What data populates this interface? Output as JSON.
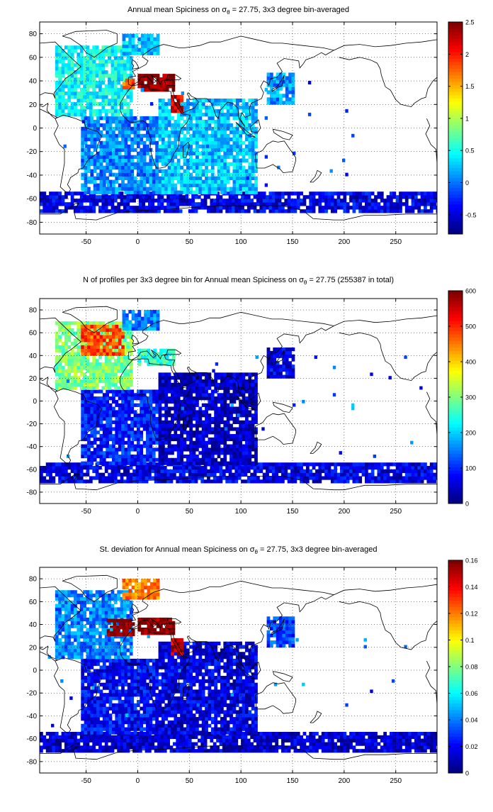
{
  "chart_data": [
    {
      "type": "heatmap",
      "title": "Annual mean Spiciness on σθ = 27.75, 3x3 degree bin-averaged",
      "title_parts": [
        "Annual mean Spiciness on σ",
        "θ",
        " = 27.75, 3x3 degree bin-averaged"
      ],
      "xlim": [
        -95,
        290
      ],
      "ylim": [
        -90,
        90
      ],
      "xticks": [
        -50,
        0,
        50,
        100,
        150,
        200,
        250
      ],
      "xtick_labels": [
        "-50",
        "0",
        "50",
        "100",
        "150",
        "200",
        "250"
      ],
      "yticks": [
        -80,
        -60,
        -40,
        -20,
        0,
        20,
        40,
        60,
        80
      ],
      "ytick_labels": [
        "-80",
        "-60",
        "-40",
        "-20",
        "0",
        "20",
        "40",
        "60",
        "80"
      ],
      "grid": true,
      "colorbar": {
        "range": [
          -0.8,
          2.5
        ],
        "ticks": [
          -0.5,
          0,
          0.5,
          1,
          1.5,
          2,
          2.5
        ],
        "tick_labels": [
          "-0.5",
          "0",
          "0.5",
          "1",
          "1.5",
          "2",
          "2.5"
        ],
        "colormap": "jet"
      },
      "regions": [
        {
          "name": "Southern Ocean band",
          "lon": [
            -95,
            290
          ],
          "lat": [
            -72,
            -56
          ],
          "value": -0.45
        },
        {
          "name": "South Atlantic",
          "lon": [
            -55,
            20
          ],
          "lat": [
            -56,
            10
          ],
          "value": 0.05
        },
        {
          "name": "Indian Ocean",
          "lon": [
            20,
            115
          ],
          "lat": [
            -56,
            25
          ],
          "value": 0.25
        },
        {
          "name": "North Atlantic",
          "lon": [
            -80,
            -5
          ],
          "lat": [
            10,
            68
          ],
          "value": 0.45
        },
        {
          "name": "Nordic Seas",
          "lon": [
            -15,
            20
          ],
          "lat": [
            62,
            80
          ],
          "value": 0.25
        },
        {
          "name": "Mediterranean outflow",
          "lon": [
            -15,
            -5
          ],
          "lat": [
            33,
            42
          ],
          "value": 1.8
        },
        {
          "name": "Mediterranean Sea",
          "lon": [
            0,
            36
          ],
          "lat": [
            31,
            44
          ],
          "value": 2.5
        },
        {
          "name": "Red Sea",
          "lon": [
            32,
            43
          ],
          "lat": [
            13,
            28
          ],
          "value": 2.2
        },
        {
          "name": "Western North Pacific patches",
          "lon": [
            125,
            150
          ],
          "lat": [
            20,
            45
          ],
          "value": 0.1
        }
      ]
    },
    {
      "type": "heatmap",
      "title": "N of profiles per 3x3 degree bin for Annual mean Spiciness on σθ = 27.75 (255387 in total)",
      "title_parts": [
        "N of profiles per 3x3 degree bin for Annual mean Spiciness on σ",
        "θ",
        " = 27.75 (255387 in total)"
      ],
      "xlim": [
        -95,
        290
      ],
      "ylim": [
        -90,
        90
      ],
      "xticks": [
        -50,
        0,
        50,
        100,
        150,
        200,
        250
      ],
      "xtick_labels": [
        "-50",
        "0",
        "50",
        "100",
        "150",
        "200",
        "250"
      ],
      "yticks": [
        -80,
        -60,
        -40,
        -20,
        0,
        20,
        40,
        60,
        80
      ],
      "ytick_labels": [
        "-80",
        "-60",
        "-40",
        "-20",
        "0",
        "20",
        "40",
        "60",
        "80"
      ],
      "grid": true,
      "colorbar": {
        "range": [
          0,
          600
        ],
        "ticks": [
          0,
          100,
          200,
          300,
          400,
          500,
          600
        ],
        "tick_labels": [
          "0",
          "100",
          "200",
          "300",
          "400",
          "500",
          "600"
        ],
        "colormap": "jet"
      },
      "regions": [
        {
          "name": "Southern Ocean band",
          "lon": [
            -95,
            290
          ],
          "lat": [
            -72,
            -56
          ],
          "value": 60
        },
        {
          "name": "South Atlantic",
          "lon": [
            -55,
            20
          ],
          "lat": [
            -56,
            10
          ],
          "value": 90
        },
        {
          "name": "Indian Ocean",
          "lon": [
            20,
            115
          ],
          "lat": [
            -56,
            25
          ],
          "value": 40
        },
        {
          "name": "North Atlantic",
          "lon": [
            -80,
            -5
          ],
          "lat": [
            10,
            68
          ],
          "value": 300
        },
        {
          "name": "Subpolar North Atlantic",
          "lon": [
            -55,
            -15
          ],
          "lat": [
            40,
            65
          ],
          "value": 480
        },
        {
          "name": "Nordic Seas",
          "lon": [
            -15,
            20
          ],
          "lat": [
            62,
            80
          ],
          "value": 150
        },
        {
          "name": "Mediterranean Sea",
          "lon": [
            0,
            36
          ],
          "lat": [
            31,
            44
          ],
          "value": 250
        },
        {
          "name": "Western North Pacific patches",
          "lon": [
            125,
            150
          ],
          "lat": [
            20,
            45
          ],
          "value": 60
        }
      ]
    },
    {
      "type": "heatmap",
      "title": "St. deviation for Annual mean Spiciness on σθ = 27.75, 3x3 degree bin-averaged",
      "title_parts": [
        "St. deviation for Annual mean Spiciness on σ",
        "θ",
        " = 27.75, 3x3 degree bin-averaged"
      ],
      "xlim": [
        -95,
        290
      ],
      "ylim": [
        -90,
        90
      ],
      "xticks": [
        -50,
        0,
        50,
        100,
        150,
        200,
        250
      ],
      "xtick_labels": [
        "-50",
        "0",
        "50",
        "100",
        "150",
        "200",
        "250"
      ],
      "yticks": [
        -80,
        -60,
        -40,
        -20,
        0,
        20,
        40,
        60,
        80
      ],
      "ytick_labels": [
        "-80",
        "-60",
        "-40",
        "-20",
        "0",
        "20",
        "40",
        "60",
        "80"
      ],
      "grid": true,
      "colorbar": {
        "range": [
          0,
          0.16
        ],
        "ticks": [
          0,
          0.02,
          0.04,
          0.06,
          0.08,
          0.1,
          0.12,
          0.14,
          0.16
        ],
        "tick_labels": [
          "0",
          "0.02",
          "0.04",
          "0.06",
          "0.08",
          "0.1",
          "0.12",
          "0.14",
          "0.16"
        ],
        "colormap": "jet"
      },
      "regions": [
        {
          "name": "Southern Ocean band",
          "lon": [
            -95,
            290
          ],
          "lat": [
            -72,
            -56
          ],
          "value": 0.012
        },
        {
          "name": "South Atlantic",
          "lon": [
            -55,
            20
          ],
          "lat": [
            -56,
            10
          ],
          "value": 0.02
        },
        {
          "name": "Indian Ocean",
          "lon": [
            20,
            115
          ],
          "lat": [
            -56,
            25
          ],
          "value": 0.015
        },
        {
          "name": "North Atlantic",
          "lon": [
            -80,
            -5
          ],
          "lat": [
            10,
            68
          ],
          "value": 0.04
        },
        {
          "name": "Nordic Seas",
          "lon": [
            -15,
            20
          ],
          "lat": [
            62,
            80
          ],
          "value": 0.12
        },
        {
          "name": "Mediterranean outflow",
          "lon": [
            -30,
            -5
          ],
          "lat": [
            30,
            45
          ],
          "value": 0.16
        },
        {
          "name": "Mediterranean Sea",
          "lon": [
            0,
            36
          ],
          "lat": [
            31,
            44
          ],
          "value": 0.16
        },
        {
          "name": "Red Sea",
          "lon": [
            32,
            43
          ],
          "lat": [
            13,
            28
          ],
          "value": 0.15
        },
        {
          "name": "Western North Pacific patches",
          "lon": [
            125,
            150
          ],
          "lat": [
            20,
            45
          ],
          "value": 0.03
        }
      ]
    }
  ]
}
